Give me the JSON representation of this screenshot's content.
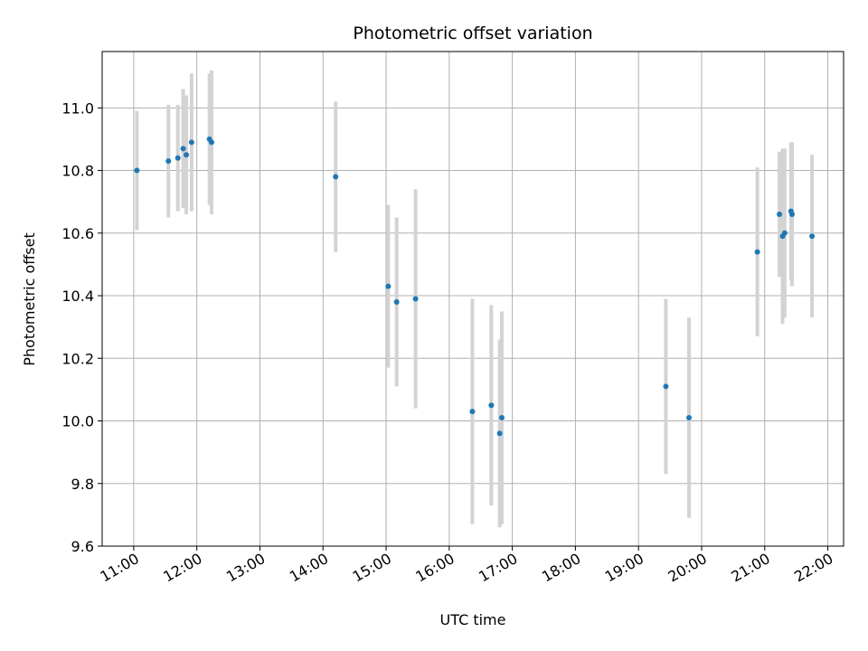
{
  "chart_data": {
    "type": "scatter",
    "title": "Photometric offset variation",
    "xlabel": "UTC time",
    "ylabel": "Photometric offset",
    "x_unit": "hours UTC",
    "xlim": [
      "10:30",
      "22:15"
    ],
    "ylim": [
      9.6,
      11.18
    ],
    "x_ticks": [
      "11:00",
      "12:00",
      "13:00",
      "14:00",
      "15:00",
      "16:00",
      "17:00",
      "18:00",
      "19:00",
      "20:00",
      "21:00",
      "22:00"
    ],
    "y_ticks": [
      "9.6",
      "9.8",
      "10.0",
      "10.2",
      "10.4",
      "10.6",
      "10.8",
      "11.0"
    ],
    "grid": true,
    "point_color": "#1f77b4",
    "errorbar_color": "#d3d3d3",
    "points": [
      {
        "x": "11:03",
        "y": 10.8,
        "err": 0.19
      },
      {
        "x": "11:33",
        "y": 10.83,
        "err": 0.18
      },
      {
        "x": "11:42",
        "y": 10.84,
        "err": 0.17
      },
      {
        "x": "11:47",
        "y": 10.87,
        "err": 0.19
      },
      {
        "x": "11:50",
        "y": 10.85,
        "err": 0.19
      },
      {
        "x": "11:55",
        "y": 10.89,
        "err": 0.22
      },
      {
        "x": "12:12",
        "y": 10.9,
        "err": 0.21
      },
      {
        "x": "12:14",
        "y": 10.89,
        "err": 0.23
      },
      {
        "x": "14:12",
        "y": 10.78,
        "err": 0.24
      },
      {
        "x": "15:02",
        "y": 10.43,
        "err": 0.26
      },
      {
        "x": "15:10",
        "y": 10.38,
        "err": 0.27
      },
      {
        "x": "15:28",
        "y": 10.39,
        "err": 0.35
      },
      {
        "x": "16:22",
        "y": 10.03,
        "err": 0.36
      },
      {
        "x": "16:40",
        "y": 10.05,
        "err": 0.32
      },
      {
        "x": "16:48",
        "y": 9.96,
        "err": 0.3
      },
      {
        "x": "16:50",
        "y": 10.01,
        "err": 0.34
      },
      {
        "x": "19:26",
        "y": 10.11,
        "err": 0.28
      },
      {
        "x": "19:48",
        "y": 10.01,
        "err": 0.32
      },
      {
        "x": "20:53",
        "y": 10.54,
        "err": 0.27
      },
      {
        "x": "21:14",
        "y": 10.66,
        "err": 0.2
      },
      {
        "x": "21:17",
        "y": 10.59,
        "err": 0.28
      },
      {
        "x": "21:19",
        "y": 10.6,
        "err": 0.27
      },
      {
        "x": "21:25",
        "y": 10.67,
        "err": 0.22
      },
      {
        "x": "21:26",
        "y": 10.66,
        "err": 0.23
      },
      {
        "x": "21:45",
        "y": 10.59,
        "err": 0.26
      }
    ]
  }
}
